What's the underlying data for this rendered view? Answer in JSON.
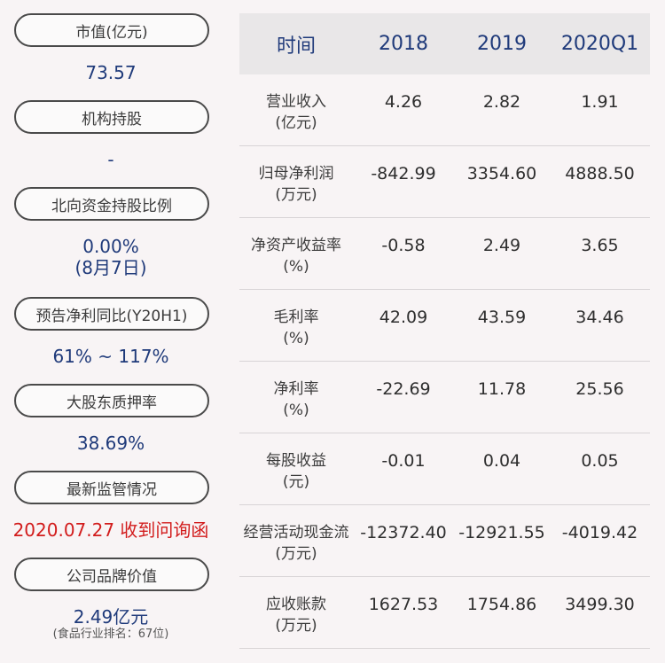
{
  "left": {
    "items": [
      {
        "label": "市值(亿元)",
        "value": "73.57",
        "sub": ""
      },
      {
        "label": "机构持股",
        "value": "-",
        "sub": ""
      },
      {
        "label": "北向资金持股比例",
        "value": "0.00%",
        "value2": "(8月7日)",
        "sub": ""
      },
      {
        "label": "预告净利同比(Y20H1)",
        "value": "61% ~ 117%",
        "sub": ""
      },
      {
        "label": "大股东质押率",
        "value": "38.69%",
        "sub": ""
      },
      {
        "label": "最新监管情况",
        "value": "2020.07.27 收到问询函",
        "sub": ""
      },
      {
        "label": "公司品牌价值",
        "value": "2.49亿元",
        "sub": "(食品行业排名：67位)"
      }
    ]
  },
  "table": {
    "headers": [
      "时间",
      "2018",
      "2019",
      "2020Q1"
    ],
    "rows": [
      {
        "label": "营业收入\n(亿元)",
        "values": [
          "4.26",
          "2.82",
          "1.91"
        ]
      },
      {
        "label": "归母净利润\n(万元)",
        "values": [
          "-842.99",
          "3354.60",
          "4888.50"
        ]
      },
      {
        "label": "净资产收益率\n(%)",
        "values": [
          "-0.58",
          "2.49",
          "3.65"
        ]
      },
      {
        "label": "毛利率\n(%)",
        "values": [
          "42.09",
          "43.59",
          "34.46"
        ]
      },
      {
        "label": "净利率\n(%)",
        "values": [
          "-22.69",
          "11.78",
          "25.56"
        ]
      },
      {
        "label": "每股收益\n(元)",
        "values": [
          "-0.01",
          "0.04",
          "0.05"
        ]
      },
      {
        "label": "经营活动现金流\n(万元)",
        "values": [
          "-12372.40",
          "-12921.55",
          "-4019.42"
        ]
      },
      {
        "label": "应收账款\n(万元)",
        "values": [
          "1627.53",
          "1754.86",
          "3499.30"
        ]
      }
    ]
  },
  "colors": {
    "value_blue": "#1f3a7a",
    "alert_red": "#d21c1c",
    "header_bg": "#e9e7e8"
  }
}
